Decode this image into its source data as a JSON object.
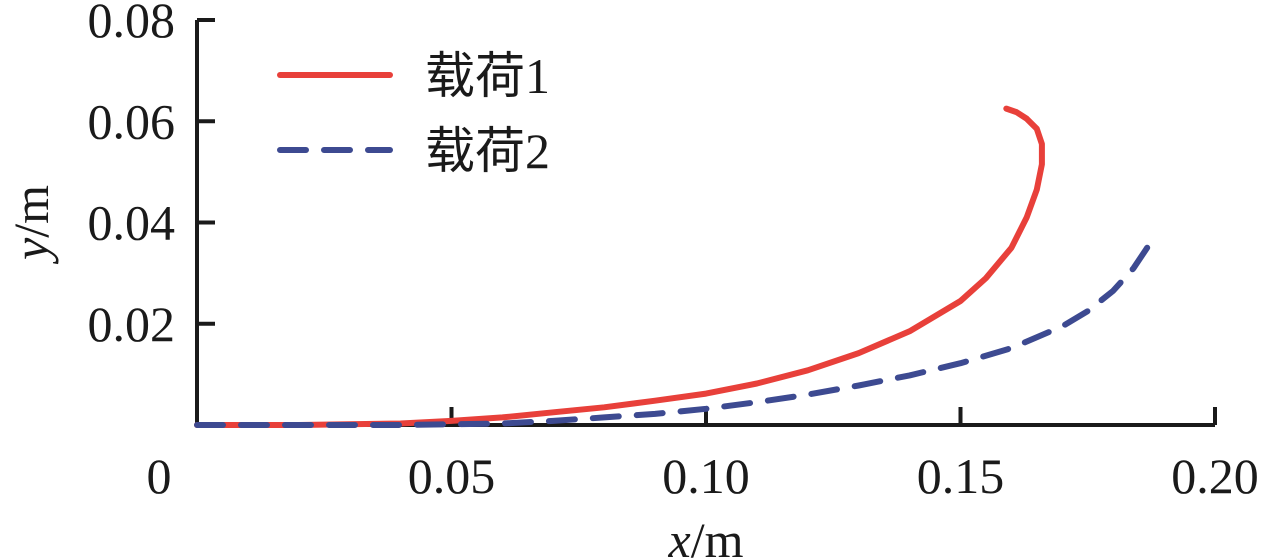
{
  "chart_data": {
    "type": "line",
    "title": "",
    "xlabel": {
      "var": "x",
      "unit": "/m"
    },
    "ylabel": {
      "var": "y",
      "unit": "/m"
    },
    "xlim": [
      0,
      0.2
    ],
    "ylim": [
      0,
      0.08
    ],
    "x_ticks": [
      0,
      0.05,
      0.1,
      0.15,
      0.2
    ],
    "x_tick_labels": [
      "0",
      "0.05",
      "0.10",
      "0.15",
      "0.20"
    ],
    "y_ticks": [
      0.02,
      0.04,
      0.06,
      0.08
    ],
    "y_tick_labels": [
      "0.02",
      "0.04",
      "0.06",
      "0.08"
    ],
    "grid": false,
    "legend_position": "top-left",
    "series": [
      {
        "name": "载荷1",
        "color": "#e8403a",
        "style": "solid",
        "x": [
          0,
          0.02,
          0.04,
          0.05,
          0.06,
          0.07,
          0.08,
          0.09,
          0.1,
          0.11,
          0.12,
          0.13,
          0.14,
          0.15,
          0.155,
          0.16,
          0.163,
          0.165,
          0.166,
          0.166,
          0.165,
          0.163,
          0.161,
          0.159
        ],
        "y": [
          0,
          0,
          0.0003,
          0.0008,
          0.0015,
          0.0025,
          0.0035,
          0.0048,
          0.0062,
          0.0082,
          0.0108,
          0.0142,
          0.0185,
          0.0245,
          0.029,
          0.035,
          0.041,
          0.0465,
          0.0515,
          0.0555,
          0.0585,
          0.0605,
          0.0618,
          0.0625
        ]
      },
      {
        "name": "载荷2",
        "color": "#3d4a91",
        "style": "dashed",
        "x": [
          0,
          0.04,
          0.06,
          0.07,
          0.08,
          0.09,
          0.1,
          0.11,
          0.12,
          0.13,
          0.14,
          0.15,
          0.16,
          0.17,
          0.175,
          0.18,
          0.184,
          0.187,
          0.188
        ],
        "y": [
          0,
          0,
          0.0003,
          0.0008,
          0.0015,
          0.0022,
          0.0032,
          0.0045,
          0.006,
          0.0078,
          0.0098,
          0.0122,
          0.0152,
          0.0195,
          0.0225,
          0.0265,
          0.031,
          0.0355,
          0.0382
        ]
      }
    ]
  }
}
